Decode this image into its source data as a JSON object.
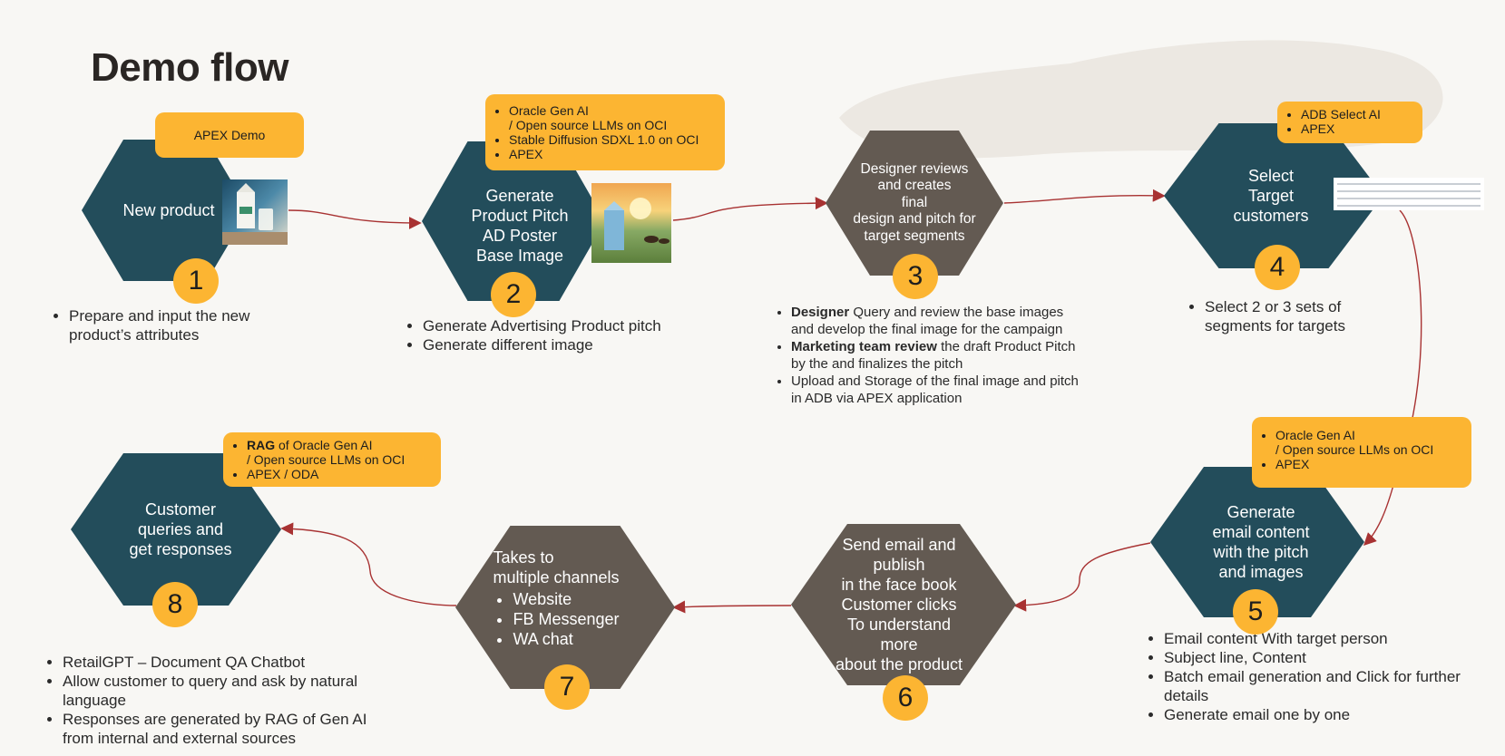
{
  "title": "Demo flow",
  "steps": [
    {
      "num": "1",
      "label": "New product",
      "tag": "APEX Demo",
      "notes": [
        "Prepare and input the new product’s attributes"
      ]
    },
    {
      "num": "2",
      "label_lines": [
        "Generate",
        "Product Pitch",
        "AD Poster",
        "Base Image"
      ],
      "tag": [
        "Oracle Gen AI",
        "/ Open source LLMs on OCI",
        "Stable Diffusion SDXL 1.0 on OCI",
        "APEX"
      ],
      "notes": [
        "Generate Advertising Product pitch",
        "Generate different image"
      ]
    },
    {
      "num": "3",
      "label_lines": [
        "Designer reviews",
        "and creates",
        "final",
        "design and pitch for",
        "target segments"
      ],
      "notes": [
        {
          "bold": "Designer",
          "text": " Query  and review the base images and develop the final image for the campaign"
        },
        {
          "bold": "Marketing team review",
          "text": " the draft Product Pitch by the and finalizes the pitch"
        },
        {
          "bold": "",
          "text": "Upload and Storage of the final image and pitch in ADB via APEX application"
        }
      ]
    },
    {
      "num": "4",
      "label_lines": [
        "Select",
        "Target",
        "customers"
      ],
      "tag": [
        "ADB Select AI",
        "APEX"
      ],
      "notes": [
        "Select  2 or 3 sets of segments for targets"
      ]
    },
    {
      "num": "5",
      "label_lines": [
        "Generate",
        "email content",
        "with the pitch",
        "and images"
      ],
      "tag": [
        "Oracle Gen AI",
        "/ Open source LLMs on OCI",
        "APEX"
      ],
      "notes": [
        "Email content With target person",
        "Subject line, Content",
        "Batch email generation and Click for further details",
        "Generate email one by one"
      ]
    },
    {
      "num": "6",
      "label_lines": [
        "Send email and",
        "publish",
        "in the face book",
        "Customer clicks",
        "To understand",
        "more",
        "about the product"
      ]
    },
    {
      "num": "7",
      "label_lines": [
        "Takes to",
        "multiple channels"
      ],
      "channels": [
        "Website",
        "FB Messenger",
        "WA chat"
      ]
    },
    {
      "num": "8",
      "label_lines": [
        "Customer",
        "queries and",
        "get responses"
      ],
      "tag": [
        {
          "bold": "RAG",
          "text": " of Oracle Gen AI"
        },
        {
          "bold": "",
          "text": "/ Open source LLMs on OCI"
        },
        {
          "bold": "",
          "text": "APEX / ODA"
        }
      ],
      "notes": [
        "RetailGPT – Document QA Chatbot",
        "Allow customer to query and ask by natural language",
        "Responses are generated by RAG of Gen AI from internal and external sources"
      ]
    }
  ],
  "colors": {
    "teal": "#234d5b",
    "brown": "#635a52",
    "tag": "#fcb532",
    "arrow": "#a83232"
  },
  "icons": [
    "milk-carton-photo-icon",
    "milk-poster-photo-icon",
    "customer-table-thumbnail-icon"
  ]
}
